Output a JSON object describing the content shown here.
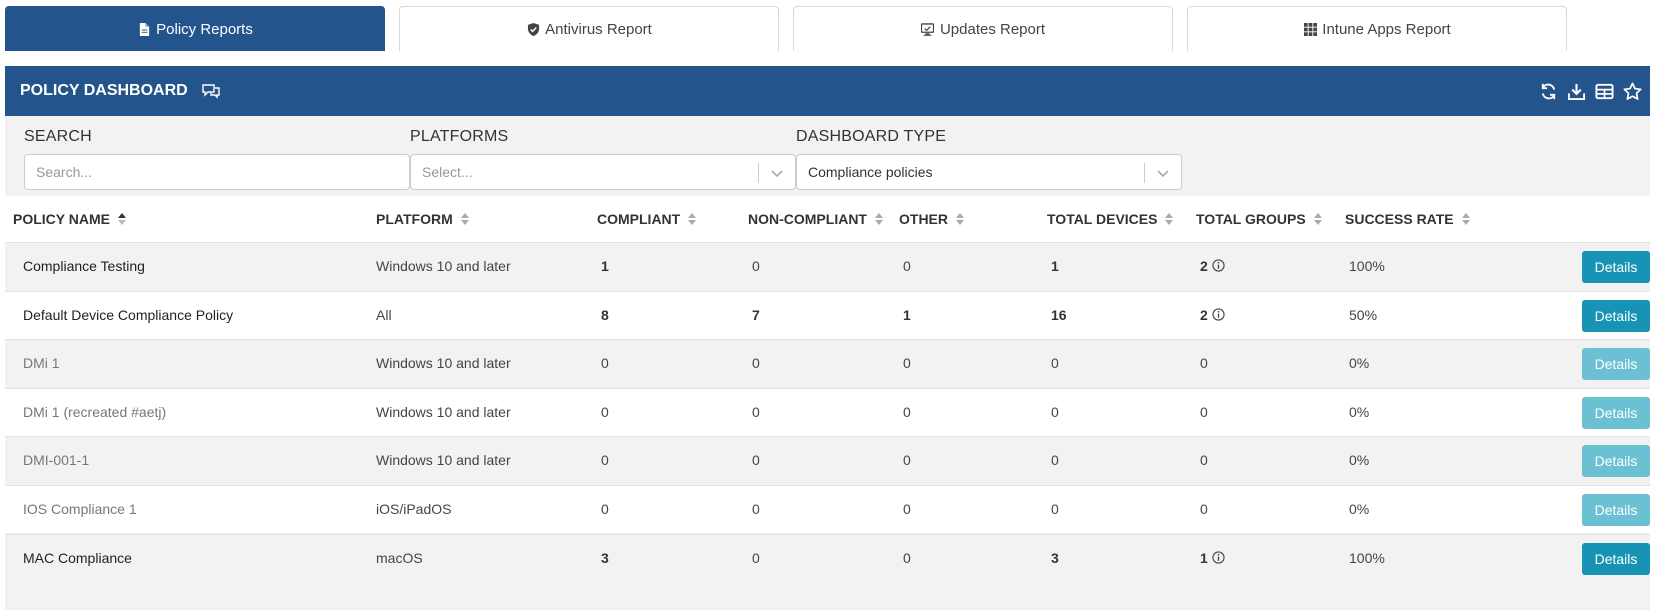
{
  "tabs": [
    {
      "label": "Policy Reports",
      "icon": "document-icon",
      "active": true
    },
    {
      "label": "Antivirus Report",
      "icon": "shield-icon",
      "active": false
    },
    {
      "label": "Updates Report",
      "icon": "monitor-icon",
      "active": false
    },
    {
      "label": "Intune Apps Report",
      "icon": "grid-icon",
      "active": false
    }
  ],
  "header": {
    "title": "POLICY DASHBOARD",
    "icons": [
      "chat-icon",
      "refresh-icon",
      "download-icon",
      "table-icon",
      "star-icon"
    ]
  },
  "filters": {
    "search": {
      "label": "SEARCH",
      "placeholder": "Search..."
    },
    "platforms": {
      "label": "PLATFORMS",
      "placeholder": "Select..."
    },
    "dashboard_type": {
      "label": "DASHBOARD TYPE",
      "value": "Compliance policies"
    }
  },
  "table": {
    "columns": [
      "POLICY NAME",
      "PLATFORM",
      "COMPLIANT",
      "NON-COMPLIANT",
      "OTHER",
      "TOTAL DEVICES",
      "TOTAL GROUPS",
      "SUCCESS RATE"
    ],
    "button_label": "Details",
    "rows": [
      {
        "name": "Compliance Testing",
        "platform": "Windows 10 and later",
        "compliant": "1",
        "noncompliant": "0",
        "other": "0",
        "total_devices": "1",
        "total_groups": "2",
        "success_rate": "100%"
      },
      {
        "name": "Default Device Compliance Policy",
        "platform": "All",
        "compliant": "8",
        "noncompliant": "7",
        "other": "1",
        "total_devices": "16",
        "total_groups": "2",
        "success_rate": "50%"
      },
      {
        "name": "DMi 1",
        "platform": "Windows 10 and later",
        "compliant": "0",
        "noncompliant": "0",
        "other": "0",
        "total_devices": "0",
        "total_groups": "0",
        "success_rate": "0%"
      },
      {
        "name": "DMi 1 (recreated #aetj)",
        "platform": "Windows 10 and later",
        "compliant": "0",
        "noncompliant": "0",
        "other": "0",
        "total_devices": "0",
        "total_groups": "0",
        "success_rate": "0%"
      },
      {
        "name": "DMI-001-1",
        "platform": "Windows 10 and later",
        "compliant": "0",
        "noncompliant": "0",
        "other": "0",
        "total_devices": "0",
        "total_groups": "0",
        "success_rate": "0%"
      },
      {
        "name": "IOS Compliance 1",
        "platform": "iOS/iPadOS",
        "compliant": "0",
        "noncompliant": "0",
        "other": "0",
        "total_devices": "0",
        "total_groups": "0",
        "success_rate": "0%"
      },
      {
        "name": "MAC Compliance",
        "platform": "macOS",
        "compliant": "3",
        "noncompliant": "0",
        "other": "0",
        "total_devices": "3",
        "total_groups": "1",
        "success_rate": "100%"
      }
    ]
  }
}
